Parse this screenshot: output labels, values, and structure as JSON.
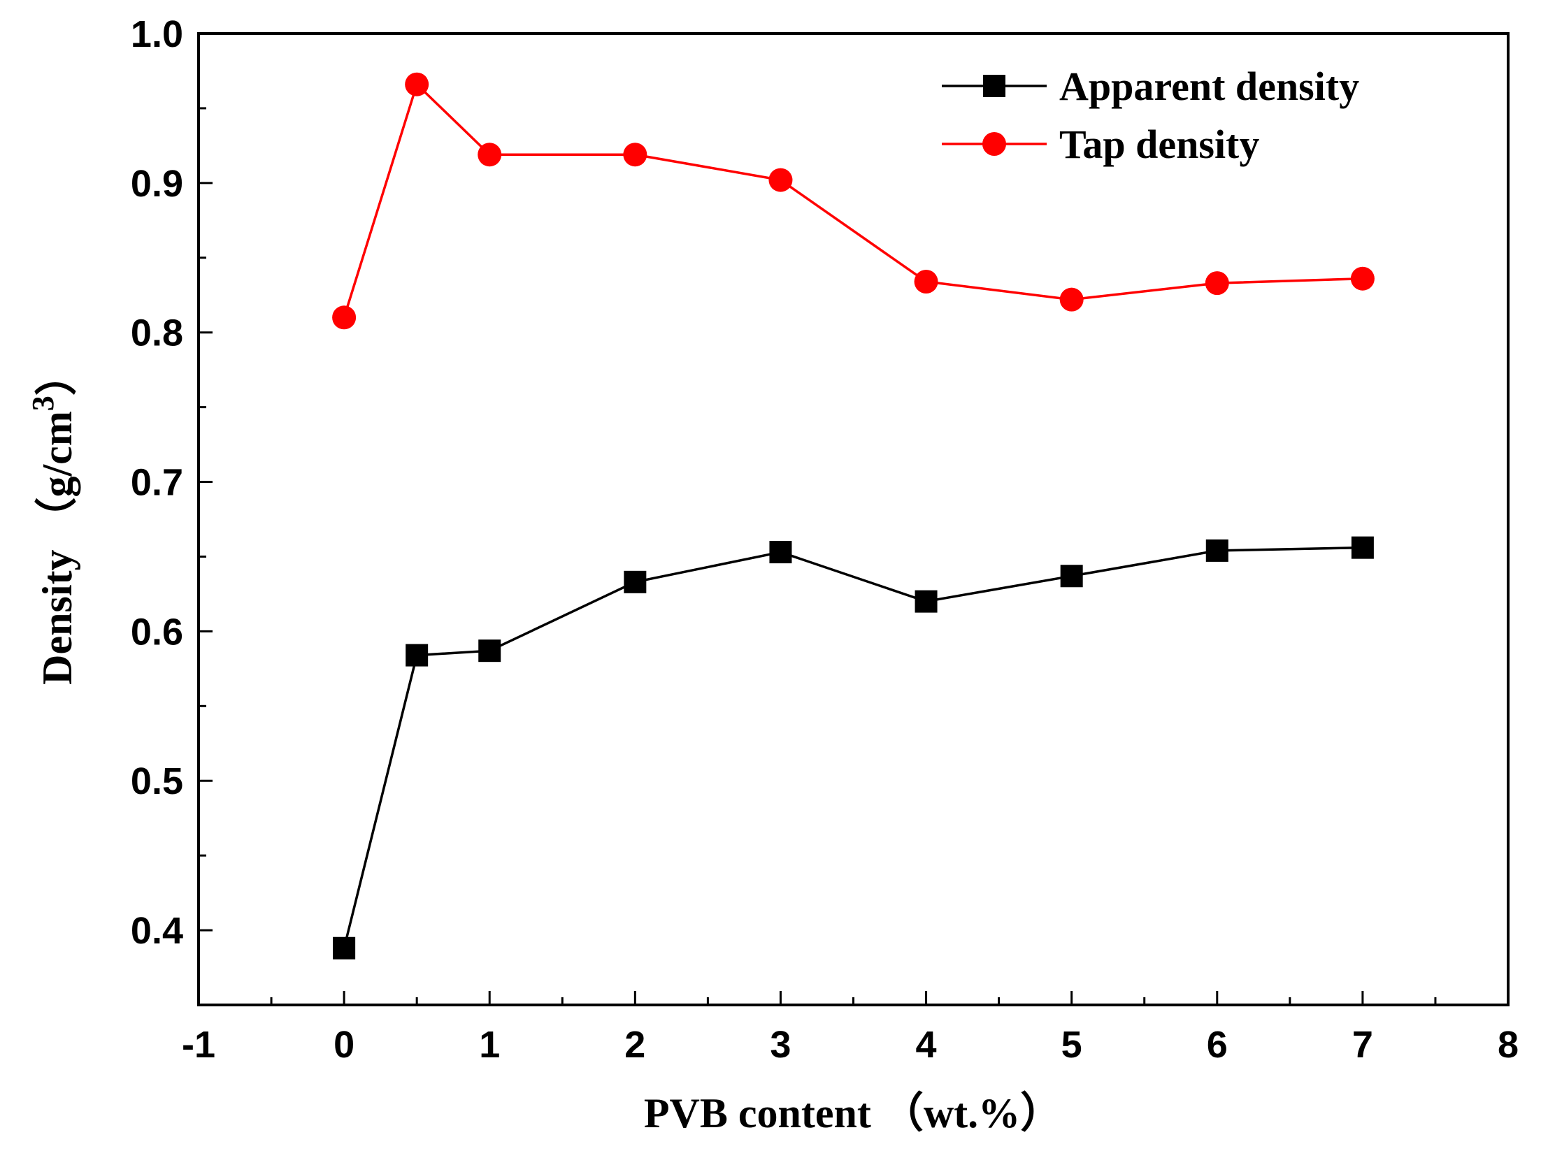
{
  "chart_data": {
    "type": "line",
    "xlabel": "PVB content （wt.%）",
    "ylabel": {
      "main": "Density （g/cm",
      "superscript": "3",
      "close": "）"
    },
    "xlim": [
      -1,
      8
    ],
    "ylim": [
      0.35,
      1.0
    ],
    "xticks": [
      -1,
      0,
      1,
      2,
      3,
      4,
      5,
      6,
      7,
      8
    ],
    "yticks": [
      0.4,
      0.5,
      0.6,
      0.7,
      0.8,
      0.9,
      1.0
    ],
    "xtick_labels": [
      "-1",
      "0",
      "1",
      "2",
      "3",
      "4",
      "5",
      "6",
      "7",
      "8"
    ],
    "ytick_labels": [
      "0.4",
      "0.5",
      "0.6",
      "0.7",
      "0.8",
      "0.9",
      "1.0"
    ],
    "grid": false,
    "legend_position": "top-right",
    "x": [
      0,
      0.5,
      1,
      2,
      3,
      4,
      5,
      6,
      7
    ],
    "series": [
      {
        "name": "Apparent density",
        "marker": "square",
        "color": "#000000",
        "values": [
          0.388,
          0.584,
          0.587,
          0.633,
          0.653,
          0.62,
          0.637,
          0.654,
          0.656
        ]
      },
      {
        "name": "Tap density",
        "marker": "circle",
        "color": "#ff0000",
        "values": [
          0.81,
          0.966,
          0.919,
          0.919,
          0.902,
          0.834,
          0.822,
          0.833,
          0.836
        ]
      }
    ]
  }
}
